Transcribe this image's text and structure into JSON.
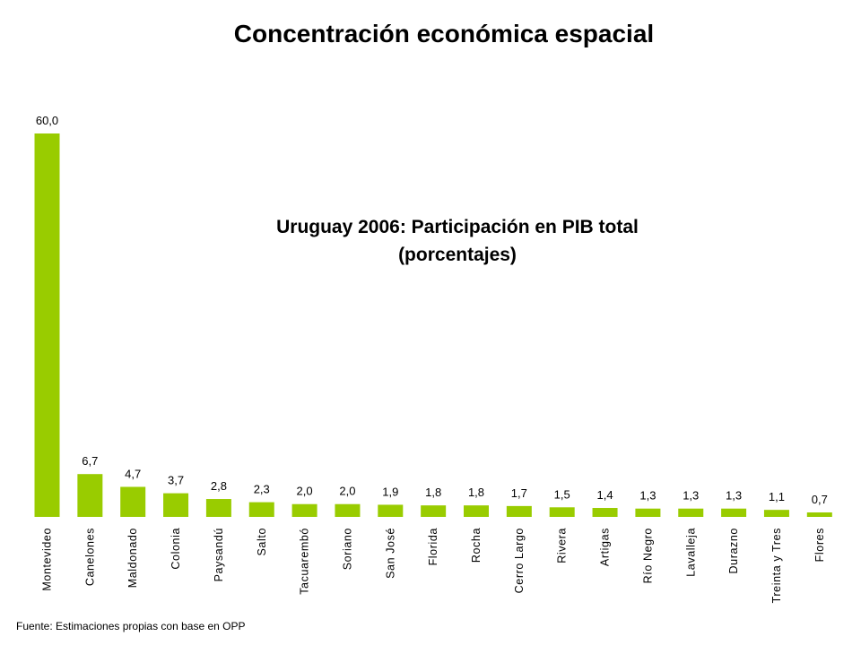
{
  "slide": {
    "title": "Concentración económica espacial",
    "source": "Fuente: Estimaciones propias con base en OPP"
  },
  "chart_data": {
    "type": "bar",
    "title_lines": [
      "Uruguay 2006: Participación en PIB total",
      "(porcentajes)"
    ],
    "xlabel": "",
    "ylabel": "",
    "ylim": [
      0,
      60
    ],
    "grid": false,
    "bar_color": "#99cc00",
    "categories": [
      "Montevideo",
      "Canelones",
      "Maldonado",
      "Colonia",
      "Paysandú",
      "Salto",
      "Tacuarembó",
      "Soriano",
      "San José",
      "Florida",
      "Rocha",
      "Cerro Largo",
      "Rivera",
      "Artigas",
      "Río Negro",
      "Lavalleja",
      "Durazno",
      "Treinta y Tres",
      "Flores"
    ],
    "values": [
      60.0,
      6.7,
      4.7,
      3.7,
      2.8,
      2.3,
      2.0,
      2.0,
      1.9,
      1.8,
      1.8,
      1.7,
      1.5,
      1.4,
      1.3,
      1.3,
      1.3,
      1.1,
      0.7
    ],
    "value_labels": [
      "60,0",
      "6,7",
      "4,7",
      "3,7",
      "2,8",
      "2,3",
      "2,0",
      "2,0",
      "1,9",
      "1,8",
      "1,8",
      "1,7",
      "1,5",
      "1,4",
      "1,3",
      "1,3",
      "1,3",
      "1,1",
      "0,7"
    ]
  }
}
